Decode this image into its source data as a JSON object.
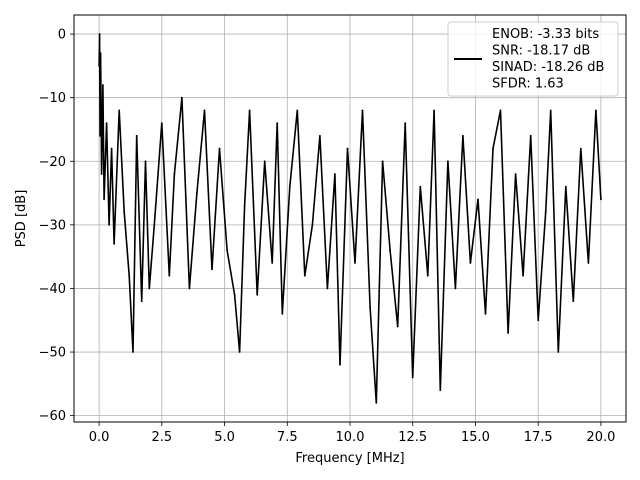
{
  "chart_data": {
    "type": "line",
    "xlabel": "Frequency [MHz]",
    "ylabel": "PSD [dB]",
    "xlim": [
      -1.0,
      21.0
    ],
    "ylim": [
      -61.0,
      3.0
    ],
    "xticks": [
      0.0,
      2.5,
      5.0,
      7.5,
      10.0,
      12.5,
      15.0,
      17.5,
      20.0
    ],
    "xtick_labels": [
      "0.0",
      "2.5",
      "5.0",
      "7.5",
      "10.0",
      "12.5",
      "15.0",
      "17.5",
      "20.0"
    ],
    "yticks": [
      0,
      -10,
      -20,
      -30,
      -40,
      -50,
      -60
    ],
    "ytick_labels": [
      "0",
      "−10",
      "−20",
      "−30",
      "−40",
      "−50",
      "−60"
    ],
    "grid": true,
    "legend_position": "top-right",
    "line_color": "#000000",
    "series": [
      {
        "name": "ENOB: -3.33 bits\nSNR: -18.17 dB\nSINAD: -18.26 dB\nSFDR: 1.63",
        "legend_lines": [
          "ENOB: -3.33 bits",
          "SNR: -18.17 dB",
          "SINAD: -18.26 dB",
          "SFDR: 1.63"
        ],
        "x": [
          0.0,
          0.02,
          0.04,
          0.06,
          0.08,
          0.1,
          0.15,
          0.2,
          0.3,
          0.4,
          0.5,
          0.6,
          0.8,
          1.0,
          1.2,
          1.35,
          1.5,
          1.7,
          1.85,
          2.0,
          2.2,
          2.5,
          2.8,
          3.0,
          3.3,
          3.6,
          3.9,
          4.2,
          4.5,
          4.8,
          5.1,
          5.4,
          5.6,
          5.8,
          6.0,
          6.3,
          6.6,
          6.9,
          7.1,
          7.3,
          7.6,
          7.9,
          8.2,
          8.5,
          8.8,
          9.1,
          9.4,
          9.6,
          9.9,
          10.2,
          10.5,
          10.8,
          11.05,
          11.3,
          11.6,
          11.9,
          12.2,
          12.5,
          12.8,
          13.1,
          13.35,
          13.6,
          13.9,
          14.2,
          14.5,
          14.8,
          15.1,
          15.4,
          15.7,
          16.0,
          16.3,
          16.6,
          16.9,
          17.2,
          17.5,
          17.8,
          18.0,
          18.3,
          18.6,
          18.9,
          19.2,
          19.5,
          19.8,
          20.0
        ],
        "values": [
          -5,
          0,
          -16,
          -3,
          -12,
          -22,
          -8,
          -26,
          -14,
          -30,
          -18,
          -33,
          -12,
          -28,
          -38,
          -50,
          -16,
          -42,
          -20,
          -40,
          -30,
          -14,
          -38,
          -22,
          -10,
          -40,
          -25,
          -12,
          -37,
          -18,
          -34,
          -41,
          -50,
          -27,
          -12,
          -41,
          -20,
          -36,
          -14,
          -44,
          -24,
          -12,
          -38,
          -30,
          -16,
          -40,
          -22,
          -52,
          -18,
          -36,
          -12,
          -43,
          -58,
          -20,
          -34,
          -46,
          -14,
          -54,
          -24,
          -38,
          -12,
          -56,
          -20,
          -40,
          -16,
          -36,
          -26,
          -44,
          -18,
          -12,
          -47,
          -22,
          -38,
          -16,
          -45,
          -28,
          -12,
          -50,
          -24,
          -42,
          -18,
          -36,
          -12,
          -26
        ]
      }
    ]
  }
}
